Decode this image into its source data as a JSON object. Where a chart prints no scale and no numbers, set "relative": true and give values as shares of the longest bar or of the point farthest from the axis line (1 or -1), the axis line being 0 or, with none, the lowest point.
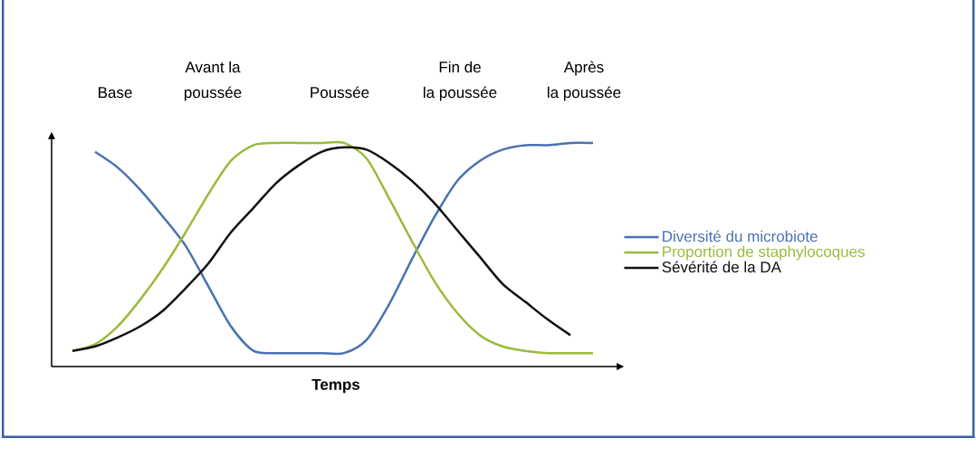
{
  "chart_data": {
    "type": "line",
    "relative": true,
    "xlabel": "Temps",
    "categories": [
      null,
      null,
      null,
      null,
      null,
      null,
      null,
      null,
      null,
      null,
      null,
      null,
      null,
      null,
      null,
      null,
      null,
      null,
      null,
      null,
      null,
      null,
      null,
      null,
      null
    ],
    "series": [
      {
        "name": "Diversité du microbiote",
        "color": "#4a72b0",
        "values": [
          null,
          0.96,
          0.89,
          0.79,
          0.67,
          0.54,
          0.36,
          0.18,
          0.07,
          0.06,
          0.06,
          0.06,
          0.06,
          0.12,
          0.28,
          0.48,
          0.67,
          0.83,
          0.92,
          0.97,
          0.99,
          0.99,
          1.0,
          1.0,
          null
        ]
      },
      {
        "name": "Proportion de staphylocoques",
        "color": "#9bbb3c",
        "values": [
          0.07,
          0.1,
          0.18,
          0.3,
          0.44,
          0.6,
          0.77,
          0.92,
          0.99,
          1.0,
          1.0,
          1.0,
          1.0,
          0.93,
          0.75,
          0.56,
          0.38,
          0.24,
          0.14,
          0.09,
          0.07,
          0.06,
          0.06,
          0.06,
          null
        ]
      },
      {
        "name": "Sévérité de la DA",
        "color": "#111111",
        "values": [
          0.07,
          0.09,
          0.13,
          0.18,
          0.25,
          0.35,
          0.46,
          0.6,
          0.71,
          0.82,
          0.9,
          0.96,
          0.98,
          0.97,
          0.91,
          0.83,
          0.73,
          0.61,
          0.49,
          0.37,
          0.29,
          0.21,
          0.14,
          null,
          null
        ]
      }
    ],
    "legend": "right",
    "marker": "none",
    "line_style": "solid",
    "annotations": [
      "Base",
      "Avant la",
      "poussée",
      "Poussée",
      "Fin de",
      "la poussée",
      "Après",
      "la poussée"
    ]
  }
}
